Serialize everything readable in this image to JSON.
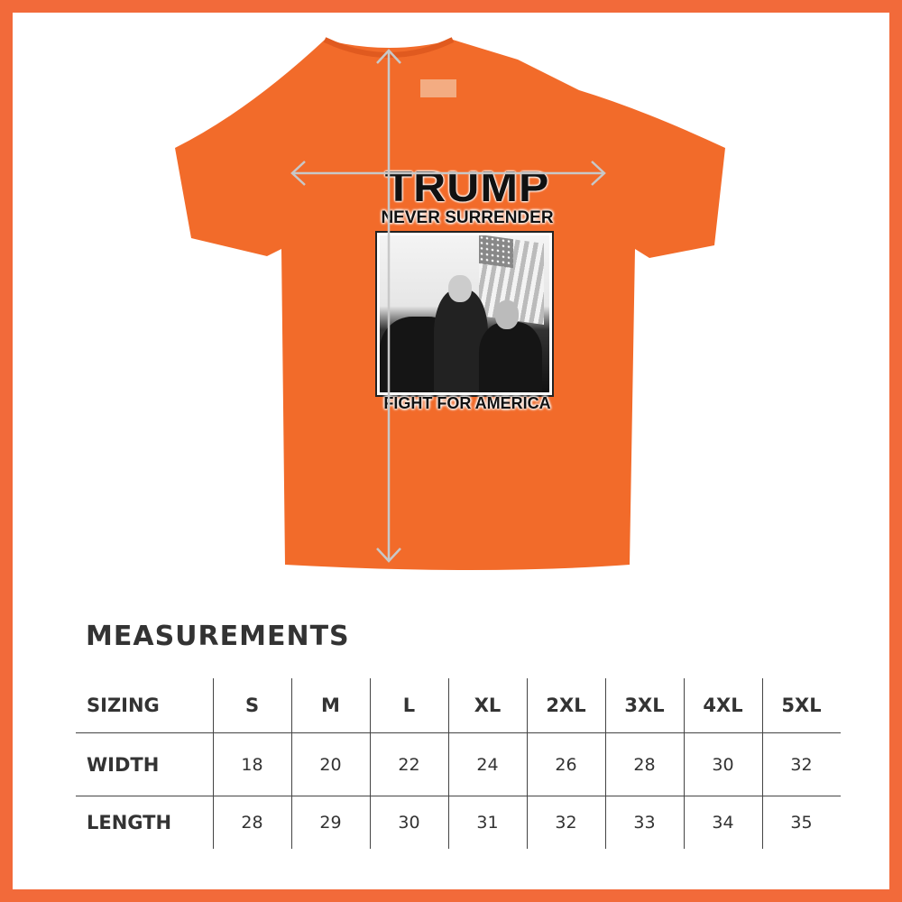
{
  "colors": {
    "border": "#F26A3A",
    "shirt": "#F26B2A",
    "text": "#333333"
  },
  "design": {
    "line1": "TRUMP",
    "line2": "NEVER SURRENDER",
    "line3": "FIGHT FOR AMERICA"
  },
  "title": "MEASUREMENTS",
  "table": {
    "header": [
      "SIZING",
      "S",
      "M",
      "L",
      "XL",
      "2XL",
      "3XL",
      "4XL",
      "5XL"
    ],
    "rows": [
      {
        "label": "WIDTH",
        "values": [
          "18",
          "20",
          "22",
          "24",
          "26",
          "28",
          "30",
          "32"
        ]
      },
      {
        "label": "LENGTH",
        "values": [
          "28",
          "29",
          "30",
          "31",
          "32",
          "33",
          "34",
          "35"
        ]
      }
    ]
  }
}
